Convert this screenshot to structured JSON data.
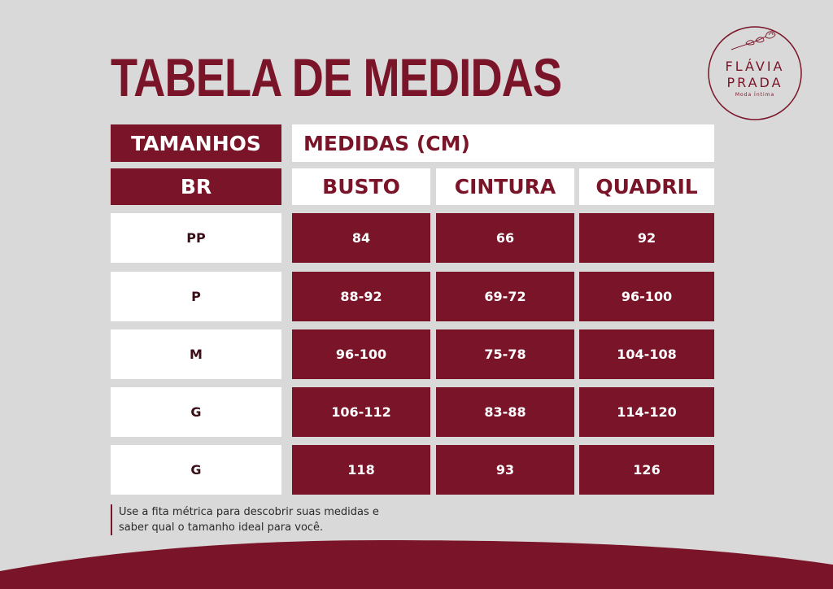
{
  "title": "TABELA DE MEDIDAS",
  "brand": {
    "line1": "FLÁVIA",
    "line2": "PRADA",
    "tagline": "Moda Íntima"
  },
  "headers": {
    "sizes": "TAMANHOS",
    "measures": "MEDIDAS (CM)",
    "br": "BR",
    "bust": "BUSTO",
    "waist": "CINTURA",
    "hip": "QUADRIL"
  },
  "rows": [
    {
      "size": "PP",
      "bust": "84",
      "waist": "66",
      "hip": "92"
    },
    {
      "size": "P",
      "bust": "88-92",
      "waist": "69-72",
      "hip": "96-100"
    },
    {
      "size": "M",
      "bust": "96-100",
      "waist": "75-78",
      "hip": "104-108"
    },
    {
      "size": "G",
      "bust": "106-112",
      "waist": "83-88",
      "hip": "114-120"
    },
    {
      "size": "G",
      "bust": "118",
      "waist": "93",
      "hip": "126"
    }
  ],
  "note": {
    "line1": "Use a fita métrica para descobrir suas medidas e",
    "line2": "saber qual o tamanho ideal para você."
  },
  "colors": {
    "accent": "#7a1428",
    "background": "#d9d9d9",
    "cell": "#ffffff"
  }
}
